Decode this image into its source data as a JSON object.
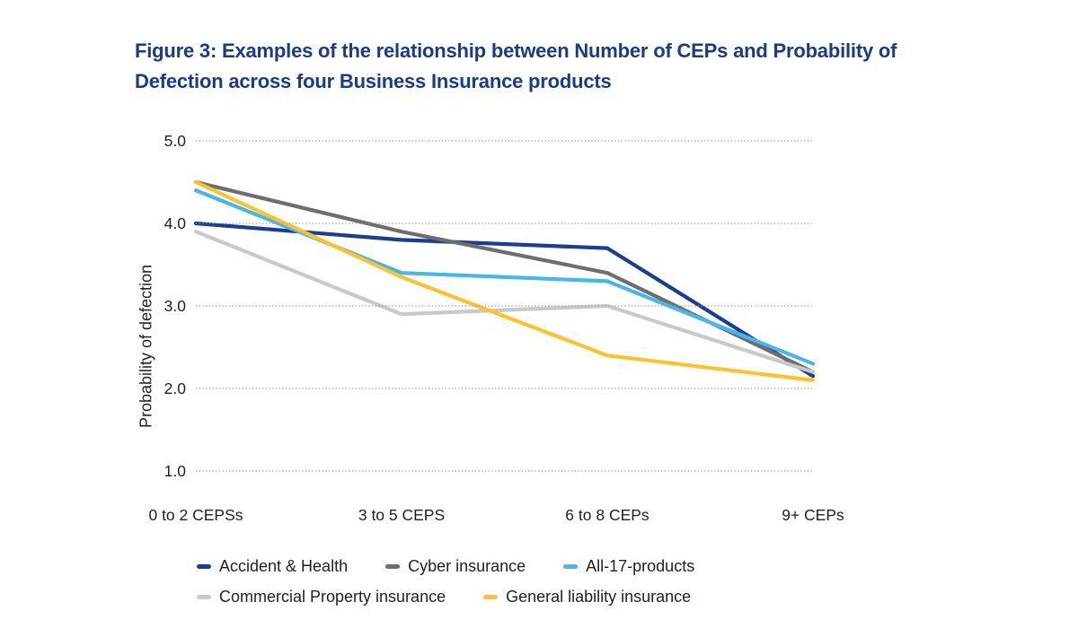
{
  "colors": {
    "background": "#ffffff",
    "title_text": "#1b3a87",
    "axis_text": "#231f20",
    "gridline": "#9b9b9d"
  },
  "chart_data": {
    "type": "line",
    "title": "Figure 3: Examples of the relationship between Number of CEPs and Probability of Defection across four Business Insurance products",
    "xlabel": "",
    "ylabel": "Probability of defection",
    "categories": [
      "0 to 2 CEPSs",
      "3 to 5 CEPS",
      "6 to 8 CEPs",
      "9+ CEPs"
    ],
    "y_ticks": [
      5.0,
      4.0,
      3.0,
      2.0,
      1.0
    ],
    "y_tick_labels": [
      "5.0",
      "4.0",
      "3.0",
      "2.0",
      "1.0"
    ],
    "ylim": [
      1.0,
      5.0
    ],
    "grid": "horizontal dotted",
    "legend_position": "bottom",
    "series": [
      {
        "name": "Accident & Health",
        "color": "#1d3e90",
        "values": [
          4.0,
          3.8,
          3.7,
          2.15
        ]
      },
      {
        "name": "Cyber insurance",
        "color": "#6d6e71",
        "values": [
          4.5,
          3.9,
          3.4,
          2.2
        ]
      },
      {
        "name": "All-17-products",
        "color": "#47b7e8",
        "values": [
          4.4,
          3.4,
          3.3,
          2.3
        ]
      },
      {
        "name": "Commercial Property insurance",
        "color": "#c8c9cb",
        "values": [
          3.9,
          2.9,
          3.0,
          2.2
        ]
      },
      {
        "name": "General liability insurance",
        "color": "#fcc32f",
        "values": [
          4.5,
          3.35,
          2.4,
          2.1
        ]
      }
    ]
  }
}
